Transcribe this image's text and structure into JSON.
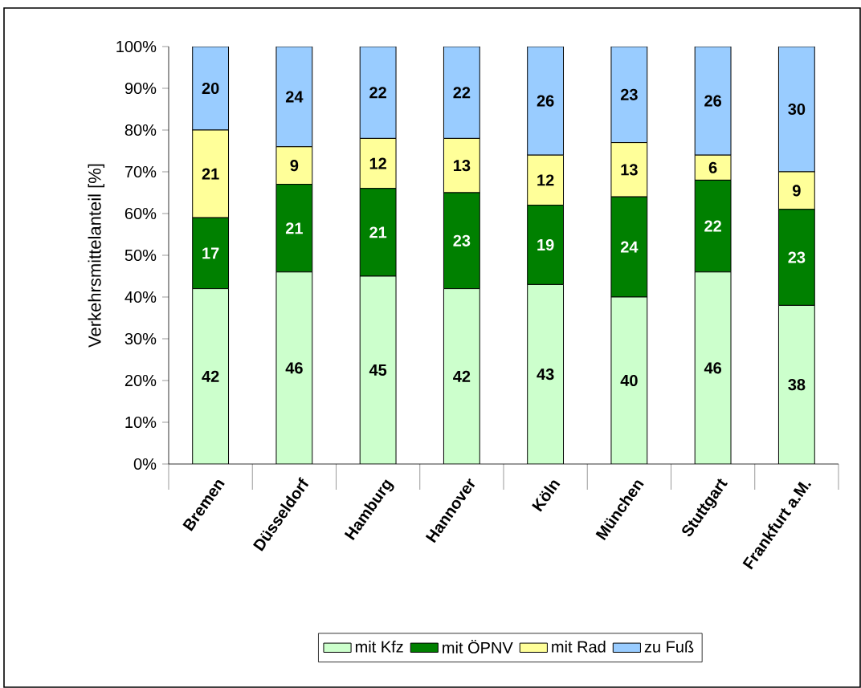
{
  "chart_data": {
    "type": "bar",
    "stacked": true,
    "ylabel": "Verkehrsmittelanteil [%]",
    "categories": [
      "Bremen",
      "Düsseldorf",
      "Hamburg",
      "Hannover",
      "Köln",
      "München",
      "Stuttgart",
      "Frankfurt a.M."
    ],
    "series": [
      {
        "name": "mit Kfz",
        "color": "#ccffcc",
        "values": [
          42,
          46,
          45,
          42,
          43,
          40,
          46,
          38
        ]
      },
      {
        "name": "mit ÖPNV",
        "color": "#008000",
        "values": [
          17,
          21,
          21,
          23,
          19,
          24,
          22,
          23
        ]
      },
      {
        "name": "mit Rad",
        "color": "#ffff99",
        "values": [
          21,
          9,
          12,
          13,
          12,
          13,
          6,
          9
        ]
      },
      {
        "name": "zu Fuß",
        "color": "#99ccff",
        "values": [
          20,
          24,
          22,
          22,
          26,
          23,
          26,
          30
        ]
      }
    ],
    "ylim": [
      0,
      100
    ],
    "yticks": [
      {
        "value": 0,
        "label": "0%"
      },
      {
        "value": 10,
        "label": "10%"
      },
      {
        "value": 20,
        "label": "20%"
      },
      {
        "value": 30,
        "label": "30%"
      },
      {
        "value": 40,
        "label": "40%"
      },
      {
        "value": 50,
        "label": "50%"
      },
      {
        "value": 60,
        "label": "60%"
      },
      {
        "value": 70,
        "label": "70%"
      },
      {
        "value": 80,
        "label": "80%"
      },
      {
        "value": 90,
        "label": "90%"
      },
      {
        "value": 100,
        "label": "100%"
      }
    ],
    "data_labels": true,
    "grid": false,
    "legend": "bottom"
  }
}
